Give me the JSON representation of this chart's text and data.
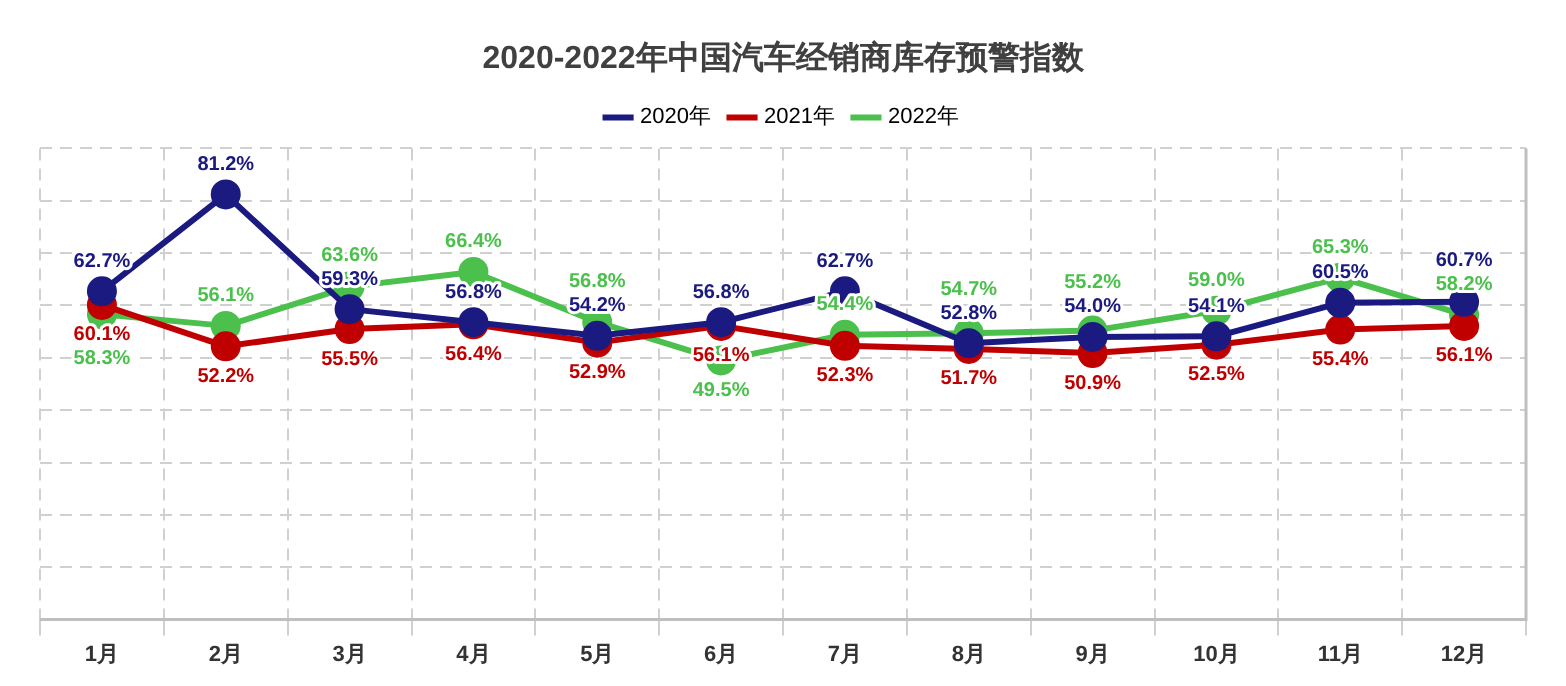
{
  "chart_data": {
    "type": "line",
    "title": "2020-2022年中国汽车经销商库存预警指数",
    "categories": [
      "1月",
      "2月",
      "3月",
      "4月",
      "5月",
      "6月",
      "7月",
      "8月",
      "9月",
      "10月",
      "11月",
      "12月"
    ],
    "series": [
      {
        "name": "2020年",
        "color": "#1a1a80",
        "values": [
          62.7,
          81.2,
          59.3,
          56.8,
          54.2,
          56.8,
          62.7,
          52.8,
          54.0,
          54.1,
          60.5,
          60.7
        ],
        "value_labels": [
          "62.7%",
          "81.2%",
          "59.3%",
          "56.8%",
          "54.2%",
          "56.8%",
          "62.7%",
          "52.8%",
          "54.0%",
          "54.1%",
          "60.5%",
          "60.7%"
        ]
      },
      {
        "name": "2021年",
        "color": "#c00000",
        "values": [
          60.1,
          52.2,
          55.5,
          56.4,
          52.9,
          56.1,
          52.3,
          51.7,
          50.9,
          52.5,
          55.4,
          56.1
        ],
        "value_labels": [
          "60.1%",
          "52.2%",
          "55.5%",
          "56.4%",
          "52.9%",
          "56.1%",
          "52.3%",
          "51.7%",
          "50.9%",
          "52.5%",
          "55.4%",
          "56.1%"
        ]
      },
      {
        "name": "2022年",
        "color": "#4cc04c",
        "values": [
          58.3,
          56.1,
          63.6,
          66.4,
          56.8,
          49.5,
          54.4,
          54.7,
          55.2,
          59.0,
          65.3,
          58.2
        ],
        "value_labels": [
          "58.3%",
          "56.1%",
          "63.6%",
          "66.4%",
          "56.8%",
          "49.5%",
          "54.4%",
          "54.7%",
          "55.2%",
          "59.0%",
          "65.3%",
          "58.2%"
        ]
      }
    ],
    "tick_labels": "x",
    "grid": true,
    "legend": "top",
    "marker": "circle",
    "line_style": "solid"
  }
}
